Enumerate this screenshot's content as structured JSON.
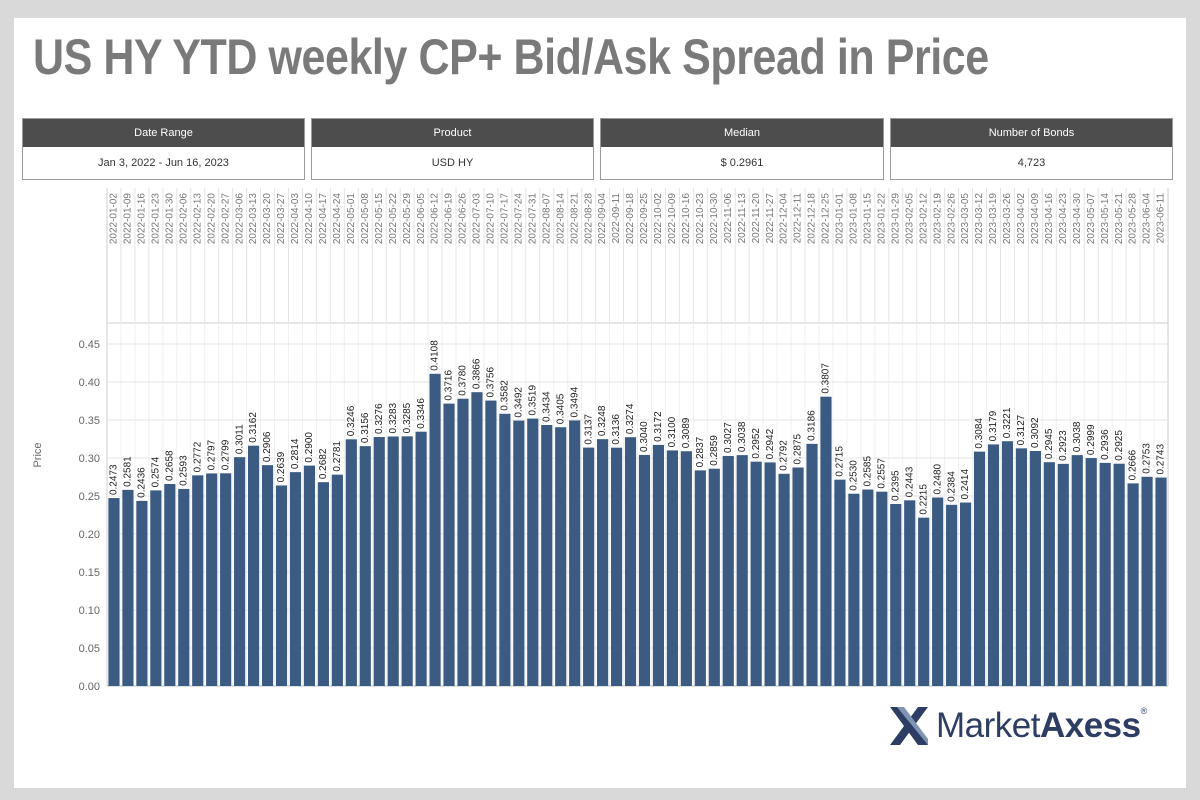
{
  "title": "US HY YTD weekly CP+ Bid/Ask Spread in Price",
  "cards": [
    {
      "label": "Date Range",
      "value": "Jan 3, 2022 - Jun 16, 2023"
    },
    {
      "label": "Product",
      "value": "USD HY"
    },
    {
      "label": "Median",
      "value": "$ 0.2961"
    },
    {
      "label": "Number of Bonds",
      "value": "4,723"
    }
  ],
  "brand": {
    "market": "Market",
    "axess": "Axess",
    "mark": "®",
    "icon": "marketaxess-x-logo-icon"
  },
  "colors": {
    "bar": "#3b5b82",
    "grid": "#e6e6e6",
    "card_header": "#4d4d4d"
  },
  "chart_data": {
    "type": "bar",
    "ylabel": "Price",
    "ylim": [
      0,
      0.48
    ],
    "yticks": [
      "0.00",
      "0.05",
      "0.10",
      "0.15",
      "0.20",
      "0.25",
      "0.30",
      "0.35",
      "0.40",
      "0.45"
    ],
    "categories": [
      "2022-01-02",
      "2022-01-09",
      "2022-01-16",
      "2022-01-23",
      "2022-01-30",
      "2022-02-06",
      "2022-02-13",
      "2022-02-20",
      "2022-02-27",
      "2022-03-06",
      "2022-03-13",
      "2022-03-20",
      "2022-03-27",
      "2022-04-03",
      "2022-04-10",
      "2022-04-17",
      "2022-04-24",
      "2022-05-01",
      "2022-05-08",
      "2022-05-15",
      "2022-05-22",
      "2022-05-29",
      "2022-06-05",
      "2022-06-12",
      "2022-06-19",
      "2022-06-26",
      "2022-07-03",
      "2022-07-10",
      "2022-07-17",
      "2022-07-24",
      "2022-07-31",
      "2022-08-07",
      "2022-08-14",
      "2022-08-21",
      "2022-08-28",
      "2022-09-04",
      "2022-09-11",
      "2022-09-18",
      "2022-09-25",
      "2022-10-02",
      "2022-10-09",
      "2022-10-16",
      "2022-10-23",
      "2022-10-30",
      "2022-11-06",
      "2022-11-13",
      "2022-11-20",
      "2022-11-27",
      "2022-12-04",
      "2022-12-11",
      "2022-12-18",
      "2022-12-25",
      "2023-01-01",
      "2023-01-08",
      "2023-01-15",
      "2023-01-22",
      "2023-01-29",
      "2023-02-05",
      "2023-02-12",
      "2023-02-19",
      "2023-02-26",
      "2023-03-05",
      "2023-03-12",
      "2023-03-19",
      "2023-03-26",
      "2023-04-02",
      "2023-04-09",
      "2023-04-16",
      "2023-04-23",
      "2023-04-30",
      "2023-05-07",
      "2023-05-14",
      "2023-05-21",
      "2023-05-28",
      "2023-06-04",
      "2023-06-11"
    ],
    "values": [
      0.2473,
      0.2581,
      0.2436,
      0.2574,
      0.2658,
      0.2593,
      0.2772,
      0.2797,
      0.2799,
      0.3011,
      0.3162,
      0.2906,
      0.2639,
      0.2814,
      0.29,
      0.2682,
      0.2781,
      0.3246,
      0.3156,
      0.3276,
      0.3283,
      0.3285,
      0.3346,
      0.4108,
      0.3716,
      0.378,
      0.3866,
      0.3756,
      0.3582,
      0.3492,
      0.3519,
      0.3434,
      0.3405,
      0.3494,
      0.3137,
      0.3248,
      0.3136,
      0.3274,
      0.304,
      0.3172,
      0.31,
      0.3089,
      0.2837,
      0.2859,
      0.3027,
      0.3038,
      0.2952,
      0.2942,
      0.2792,
      0.2875,
      0.3186,
      0.3807,
      0.2715,
      0.253,
      0.2585,
      0.2557,
      0.2395,
      0.2443,
      0.2215,
      0.248,
      0.2384,
      0.2414,
      0.3084,
      0.3179,
      0.3221,
      0.3127,
      0.3092,
      0.2945,
      0.2923,
      0.3038,
      0.2999,
      0.2936,
      0.2925,
      0.2666,
      0.2753,
      0.2743
    ],
    "labels": [
      "0.2473",
      "0.2581",
      "0.2436",
      "0.2574",
      "0.2658",
      "0.2593",
      "0.2772",
      "0.2797",
      "0.2799",
      "0.3011",
      "0.3162",
      "0.2906",
      "0.2639",
      "0.2814",
      "0.2900",
      "0.2682",
      "0.2781",
      "0.3246",
      "0.3156",
      "0.3276",
      "0.3283",
      "0.3285",
      "0.3346",
      "0.4108",
      "0.3716",
      "0.3780",
      "0.3866",
      "0.3756",
      "0.3582",
      "0.3492",
      "0.3519",
      "0.3434",
      "0.3405",
      "0.3494",
      "0.3137",
      "0.3248",
      "0.3136",
      "0.3274",
      "0.3040",
      "0.3172",
      "0.3100",
      "0.3089",
      "0.2837",
      "0.2859",
      "0.3027",
      "0.3038",
      "0.2952",
      "0.2942",
      "0.2792",
      "0.2875",
      "0.3186",
      "0.3807",
      "0.2715",
      "0.2530",
      "0.2585",
      "0.2557",
      "0.2395",
      "0.2443",
      "0.2215",
      "0.2480",
      "0.2384",
      "0.2414",
      "0.3084",
      "0.3179",
      "0.3221",
      "0.3127",
      "0.3092",
      "0.2945",
      "0.2923",
      "0.3038",
      "0.2999",
      "0.2936",
      "0.2925",
      "0.2666",
      "0.2753",
      "0.2743"
    ],
    "grid": true,
    "legend": "none"
  }
}
